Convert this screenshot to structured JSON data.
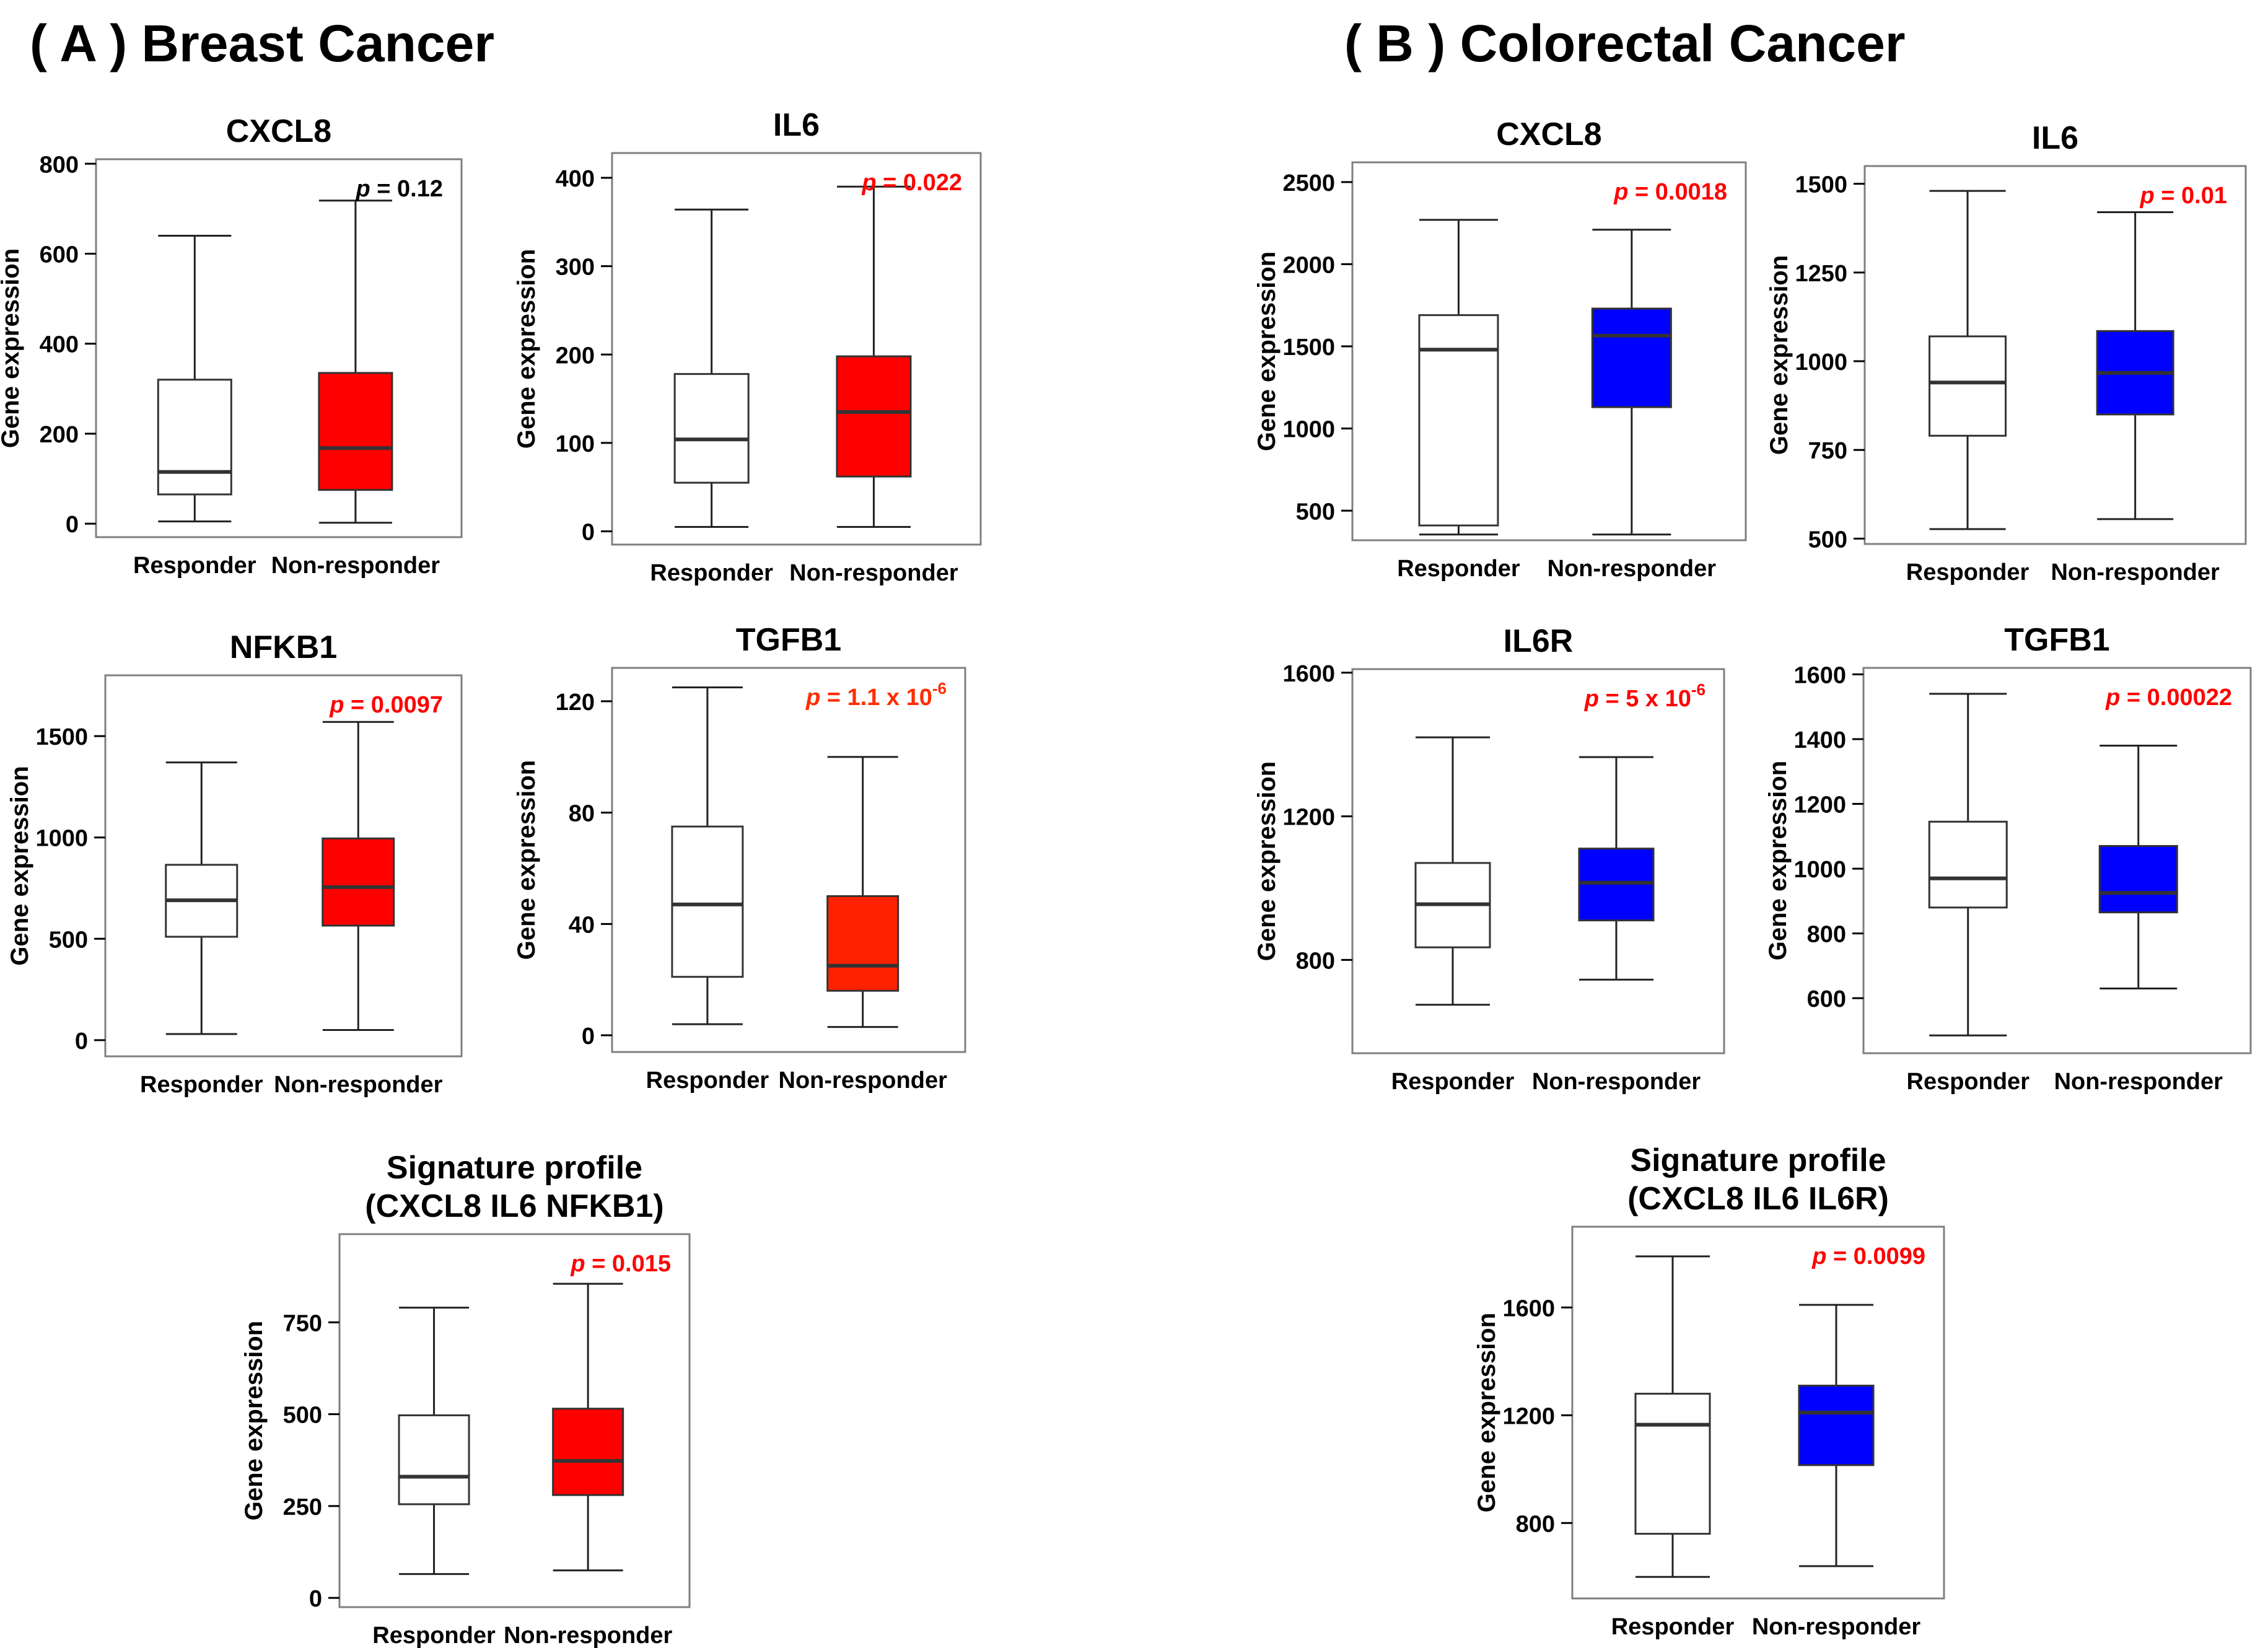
{
  "figure": {
    "section_a": "( A ) Breast Cancer",
    "section_b": "( B ) Colorectal Cancer"
  },
  "chart_data": [
    {
      "type": "box",
      "panel": "A",
      "title": "CXCL8",
      "ylabel": "Gene expression",
      "categories": [
        "Responder",
        "Non-responder"
      ],
      "ylim": [
        -30,
        810
      ],
      "yticks": [
        0,
        200,
        400,
        600,
        800
      ],
      "p_prefix": "p",
      "p_value": "= 0.12",
      "p_color": "#000000",
      "boxes": [
        {
          "group": "Responder",
          "min": 5,
          "q1": 65,
          "median": 115,
          "q3": 320,
          "max": 640,
          "fill": "#ffffff"
        },
        {
          "group": "Non-responder",
          "min": 2,
          "q1": 75,
          "median": 168,
          "q3": 335,
          "max": 718,
          "fill": "#ff0000"
        }
      ]
    },
    {
      "type": "box",
      "panel": "A",
      "title": "IL6",
      "ylabel": "Gene expression",
      "categories": [
        "Responder",
        "Non-responder"
      ],
      "ylim": [
        -15,
        428
      ],
      "yticks": [
        0,
        100,
        200,
        300,
        400
      ],
      "p_prefix": "p",
      "p_value": "= 0.022",
      "p_color": "#ff0000",
      "boxes": [
        {
          "group": "Responder",
          "min": 5,
          "q1": 55,
          "median": 104,
          "q3": 178,
          "max": 364,
          "fill": "#ffffff"
        },
        {
          "group": "Non-responder",
          "min": 5,
          "q1": 62,
          "median": 135,
          "q3": 198,
          "max": 390,
          "fill": "#ff0000"
        }
      ]
    },
    {
      "type": "box",
      "panel": "A",
      "title": "NFKB1",
      "ylabel": "Gene expression",
      "categories": [
        "Responder",
        "Non-responder"
      ],
      "ylim": [
        -80,
        1800
      ],
      "yticks": [
        0,
        500,
        1000,
        1500
      ],
      "p_prefix": "p",
      "p_value": "= 0.0097",
      "p_color": "#ff0000",
      "boxes": [
        {
          "group": "Responder",
          "min": 30,
          "q1": 510,
          "median": 690,
          "q3": 865,
          "max": 1370,
          "fill": "#ffffff"
        },
        {
          "group": "Non-responder",
          "min": 50,
          "q1": 565,
          "median": 755,
          "q3": 995,
          "max": 1570,
          "fill": "#ff0000"
        }
      ]
    },
    {
      "type": "box",
      "panel": "A",
      "title": "TGFB1",
      "ylabel": "Gene expression",
      "categories": [
        "Responder",
        "Non-responder"
      ],
      "ylim": [
        -6,
        132
      ],
      "yticks": [
        0,
        40,
        80,
        120
      ],
      "p_prefix": "p",
      "p_value": "= 1.1 x 10",
      "p_exp": "-6",
      "p_color": "#ff2d00",
      "boxes": [
        {
          "group": "Responder",
          "min": 4,
          "q1": 21,
          "median": 47,
          "q3": 75,
          "max": 125,
          "fill": "#ffffff"
        },
        {
          "group": "Non-responder",
          "min": 3,
          "q1": 16,
          "median": 25,
          "q3": 50,
          "max": 100,
          "fill": "#ff2200"
        }
      ]
    },
    {
      "type": "box",
      "panel": "A",
      "title": "Signature profile\n(CXCL8 IL6 NFKB1)",
      "ylabel": "Gene expression",
      "categories": [
        "Responder",
        "Non-responder"
      ],
      "ylim": [
        -25,
        990
      ],
      "yticks": [
        0,
        250,
        500,
        750
      ],
      "p_prefix": "p",
      "p_value": "= 0.015",
      "p_color": "#ff0000",
      "boxes": [
        {
          "group": "Responder",
          "min": 65,
          "q1": 255,
          "median": 330,
          "q3": 497,
          "max": 790,
          "fill": "#ffffff"
        },
        {
          "group": "Non-responder",
          "min": 75,
          "q1": 280,
          "median": 373,
          "q3": 515,
          "max": 855,
          "fill": "#ff0000"
        }
      ]
    },
    {
      "type": "box",
      "panel": "B",
      "title": "CXCL8",
      "ylabel": "Gene expression",
      "categories": [
        "Responder",
        "Non-responder"
      ],
      "ylim": [
        320,
        2620
      ],
      "yticks": [
        500,
        1000,
        1500,
        2000,
        2500
      ],
      "p_prefix": "p",
      "p_value": "= 0.0018",
      "p_color": "#ff0000",
      "boxes": [
        {
          "group": "Responder",
          "min": 355,
          "q1": 410,
          "median": 1480,
          "q3": 1690,
          "max": 2270,
          "fill": "#ffffff"
        },
        {
          "group": "Non-responder",
          "min": 355,
          "q1": 1130,
          "median": 1565,
          "q3": 1730,
          "max": 2210,
          "fill": "#0000ff"
        }
      ]
    },
    {
      "type": "box",
      "panel": "B",
      "title": "IL6",
      "ylabel": "Gene expression",
      "categories": [
        "Responder",
        "Non-responder"
      ],
      "ylim": [
        485,
        1550
      ],
      "yticks": [
        500,
        750,
        1000,
        1250,
        1500
      ],
      "p_prefix": "p",
      "p_value": "= 0.01",
      "p_color": "#ff0000",
      "boxes": [
        {
          "group": "Responder",
          "min": 527,
          "q1": 790,
          "median": 940,
          "q3": 1070,
          "max": 1480,
          "fill": "#ffffff"
        },
        {
          "group": "Non-responder",
          "min": 555,
          "q1": 850,
          "median": 967,
          "q3": 1085,
          "max": 1420,
          "fill": "#0000ff"
        }
      ]
    },
    {
      "type": "box",
      "panel": "B",
      "title": "IL6R",
      "ylabel": "Gene expression",
      "categories": [
        "Responder",
        "Non-responder"
      ],
      "ylim": [
        540,
        1610
      ],
      "yticks": [
        800,
        1200,
        1600
      ],
      "p_prefix": "p",
      "p_value": "= 5 x 10",
      "p_exp": "-6",
      "p_color": "#ff0000",
      "boxes": [
        {
          "group": "Responder",
          "min": 675,
          "q1": 835,
          "median": 955,
          "q3": 1070,
          "max": 1420,
          "fill": "#ffffff"
        },
        {
          "group": "Non-responder",
          "min": 745,
          "q1": 910,
          "median": 1015,
          "q3": 1110,
          "max": 1365,
          "fill": "#0000ff"
        }
      ]
    },
    {
      "type": "box",
      "panel": "B",
      "title": "TGFB1",
      "ylabel": "Gene expression",
      "categories": [
        "Responder",
        "Non-responder"
      ],
      "ylim": [
        430,
        1620
      ],
      "yticks": [
        600,
        800,
        1000,
        1200,
        1400,
        1600
      ],
      "p_prefix": "p",
      "p_value": "= 0.00022",
      "p_color": "#ff0000",
      "boxes": [
        {
          "group": "Responder",
          "min": 485,
          "q1": 880,
          "median": 970,
          "q3": 1145,
          "max": 1540,
          "fill": "#ffffff"
        },
        {
          "group": "Non-responder",
          "min": 630,
          "q1": 865,
          "median": 925,
          "q3": 1070,
          "max": 1380,
          "fill": "#0000ff"
        }
      ]
    },
    {
      "type": "box",
      "panel": "B",
      "title": "Signature profile\n(CXCL8 IL6 IL6R)",
      "ylabel": "Gene expression",
      "categories": [
        "Responder",
        "Non-responder"
      ],
      "ylim": [
        520,
        1900
      ],
      "yticks": [
        800,
        1200,
        1600
      ],
      "p_prefix": "p",
      "p_value": "= 0.0099",
      "p_color": "#ff0000",
      "boxes": [
        {
          "group": "Responder",
          "min": 600,
          "q1": 760,
          "median": 1165,
          "q3": 1280,
          "max": 1790,
          "fill": "#ffffff"
        },
        {
          "group": "Non-responder",
          "min": 640,
          "q1": 1015,
          "median": 1210,
          "q3": 1310,
          "max": 1610,
          "fill": "#0000ff"
        }
      ]
    }
  ]
}
